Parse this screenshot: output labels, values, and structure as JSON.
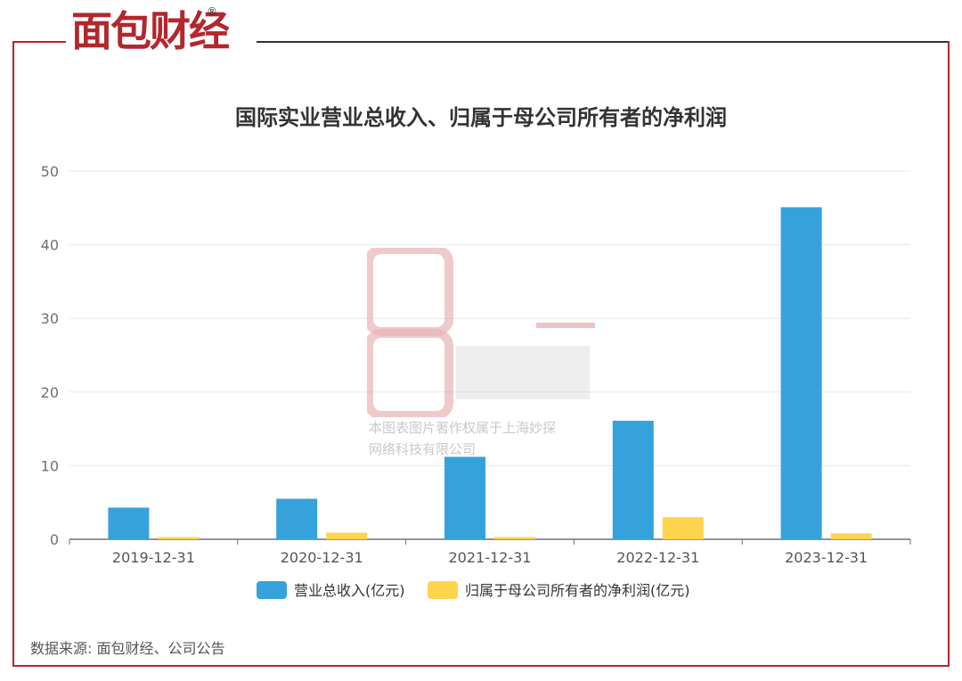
{
  "brand": {
    "logo_text": "面包财经",
    "registered_mark": "®"
  },
  "title": "国际实业营业总收入、归属于母公司所有者的净利润",
  "source_note": "数据来源: 面包财经、公司公告",
  "watermark": {
    "text_line1": "本图表图片著作权属于上海妙探",
    "text_line2": "网络科技有限公司"
  },
  "colors": {
    "revenue": "#36a2dc",
    "profit": "#ffd44d",
    "frame": "#b3272d",
    "grid": "#e6e8f0",
    "axis": "#6e7079"
  },
  "chart_data": {
    "type": "bar",
    "title": "国际实业营业总收入、归属于母公司所有者的净利润",
    "categories": [
      "2019-12-31",
      "2020-12-31",
      "2021-12-31",
      "2022-12-31",
      "2023-12-31"
    ],
    "series": [
      {
        "name": "营业总收入(亿元)",
        "values": [
          4.3,
          5.5,
          11.2,
          16.1,
          45.1
        ]
      },
      {
        "name": "归属于母公司所有者的净利润(亿元)",
        "values": [
          0.3,
          0.9,
          0.3,
          3.0,
          0.8
        ]
      }
    ],
    "ylim": [
      0,
      50
    ],
    "yticks": [
      0,
      10,
      20,
      30,
      40,
      50
    ],
    "grid": true,
    "legend_position": "bottom"
  }
}
